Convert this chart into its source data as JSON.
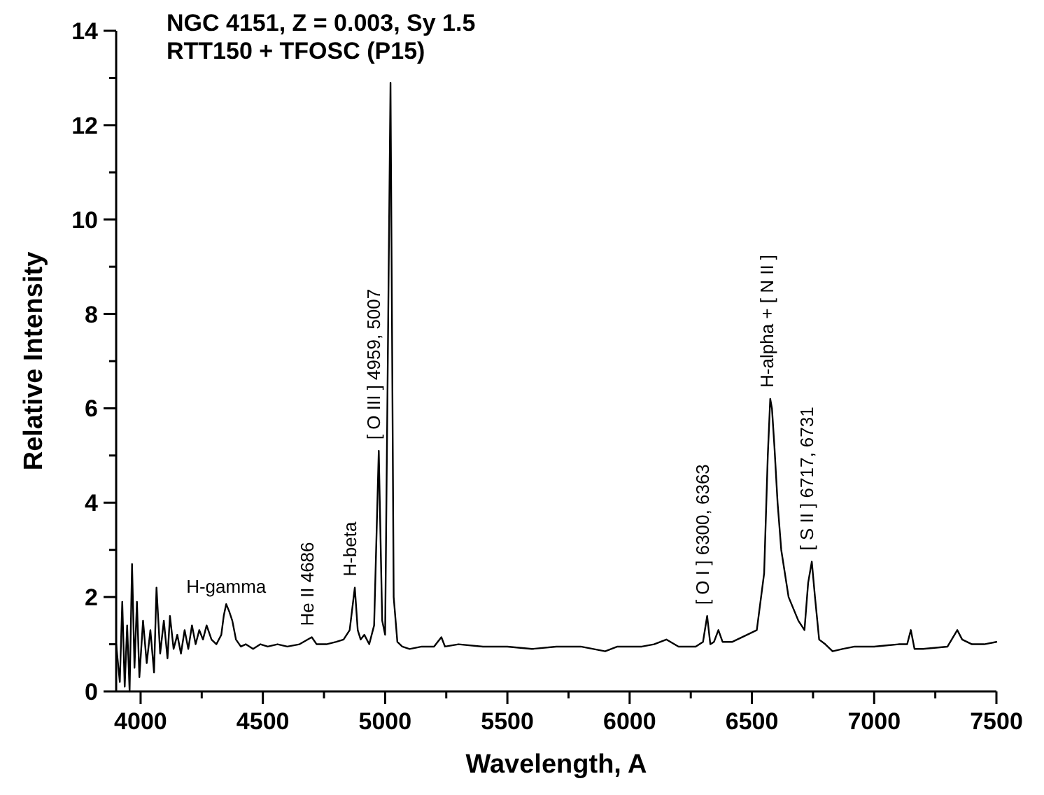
{
  "chart_data": {
    "type": "line",
    "title": "NGC 4151, Z = 0.003, Sy 1.5",
    "subtitle": "RTT150 + TFOSC (P15)",
    "xlabel": "Wavelength, A",
    "ylabel": "Relative Intensity",
    "xlim": [
      3900,
      7500
    ],
    "ylim": [
      0,
      14
    ],
    "xticks": [
      4000,
      {
        "value": 4250,
        "label": null
      },
      4500,
      {
        "value": 4750,
        "label": null
      },
      5000,
      {
        "value": 5250,
        "label": null
      },
      5500,
      {
        "value": 5750,
        "label": null
      },
      6000,
      {
        "value": 6250,
        "label": null
      },
      6500,
      {
        "value": 6750,
        "label": null
      },
      7000,
      {
        "value": 7250,
        "label": null
      },
      7500
    ],
    "yticks": [
      0,
      {
        "value": 1,
        "label": null
      },
      2,
      {
        "value": 3,
        "label": null
      },
      4,
      {
        "value": 5,
        "label": null
      },
      6,
      {
        "value": 7,
        "label": null
      },
      8,
      {
        "value": 9,
        "label": null
      },
      10,
      {
        "value": 11,
        "label": null
      },
      12,
      {
        "value": 13,
        "label": null
      },
      14
    ],
    "grid": false,
    "marker": "none",
    "line_style": "solid",
    "annotations": [
      {
        "text": "H-gamma",
        "x": 4350,
        "y": 1.85
      },
      {
        "text": "He II 4686",
        "x": 4700,
        "y": 1.15
      },
      {
        "text": "H-beta",
        "x": 4876,
        "y": 2.2
      },
      {
        "text": "[ O III ] 4959, 5007",
        "x": 4974,
        "y": 5.1
      },
      {
        "text": "[ O I ] 6300, 6363",
        "x": 6317,
        "y": 1.6
      },
      {
        "text": "H-alpha + [ N II ]",
        "x": 6582,
        "y": 6.2
      },
      {
        "text": "[ S II ] 6717, 6731",
        "x": 6745,
        "y": 2.75
      }
    ],
    "series": [
      {
        "color": "#000000",
        "x": [
          3900,
          3915,
          3925,
          3935,
          3945,
          3955,
          3965,
          3975,
          3985,
          3995,
          4010,
          4025,
          4040,
          4055,
          4065,
          4080,
          4095,
          4110,
          4120,
          4135,
          4150,
          4165,
          4180,
          4195,
          4210,
          4225,
          4240,
          4255,
          4270,
          4290,
          4310,
          4330,
          4340,
          4350,
          4362,
          4375,
          4390,
          4410,
          4430,
          4460,
          4490,
          4520,
          4560,
          4600,
          4650,
          4700,
          4720,
          4760,
          4800,
          4830,
          4855,
          4876,
          4888,
          4900,
          4915,
          4935,
          4955,
          4974,
          4988,
          5000,
          5022,
          5035,
          5050,
          5070,
          5100,
          5150,
          5200,
          5230,
          5245,
          5300,
          5400,
          5500,
          5600,
          5700,
          5800,
          5900,
          5950,
          6000,
          6050,
          6100,
          6150,
          6200,
          6270,
          6300,
          6317,
          6330,
          6345,
          6363,
          6380,
          6420,
          6480,
          6520,
          6550,
          6565,
          6575,
          6582,
          6592,
          6605,
          6620,
          6650,
          6690,
          6715,
          6730,
          6745,
          6758,
          6775,
          6800,
          6830,
          6870,
          6920,
          7000,
          7100,
          7135,
          7150,
          7165,
          7200,
          7300,
          7340,
          7360,
          7400,
          7450,
          7500
        ],
        "values": [
          1.0,
          0.2,
          1.9,
          0.1,
          1.4,
          0.0,
          2.7,
          0.5,
          1.9,
          0.3,
          1.5,
          0.6,
          1.3,
          0.4,
          2.2,
          0.8,
          1.5,
          0.7,
          1.6,
          0.9,
          1.2,
          0.8,
          1.3,
          0.9,
          1.4,
          1.0,
          1.3,
          1.1,
          1.4,
          1.1,
          1.0,
          1.2,
          1.6,
          1.85,
          1.7,
          1.5,
          1.1,
          0.95,
          1.0,
          0.9,
          1.0,
          0.95,
          1.0,
          0.95,
          1.0,
          1.15,
          1.0,
          1.0,
          1.05,
          1.1,
          1.3,
          2.2,
          1.3,
          1.1,
          1.2,
          1.0,
          1.4,
          5.1,
          1.5,
          1.2,
          12.9,
          2.0,
          1.05,
          0.95,
          0.9,
          0.95,
          0.95,
          1.15,
          0.95,
          1.0,
          0.95,
          0.95,
          0.9,
          0.95,
          0.95,
          0.85,
          0.95,
          0.95,
          0.95,
          1.0,
          1.1,
          0.95,
          0.95,
          1.05,
          1.6,
          1.0,
          1.05,
          1.3,
          1.05,
          1.05,
          1.2,
          1.3,
          2.5,
          5.0,
          6.2,
          6.0,
          5.2,
          4.0,
          3.0,
          2.0,
          1.5,
          1.3,
          2.3,
          2.75,
          2.0,
          1.1,
          1.0,
          0.85,
          0.9,
          0.95,
          0.95,
          1.0,
          1.0,
          1.3,
          0.9,
          0.9,
          0.95,
          1.3,
          1.1,
          1.0,
          1.0,
          1.05
        ]
      }
    ]
  }
}
